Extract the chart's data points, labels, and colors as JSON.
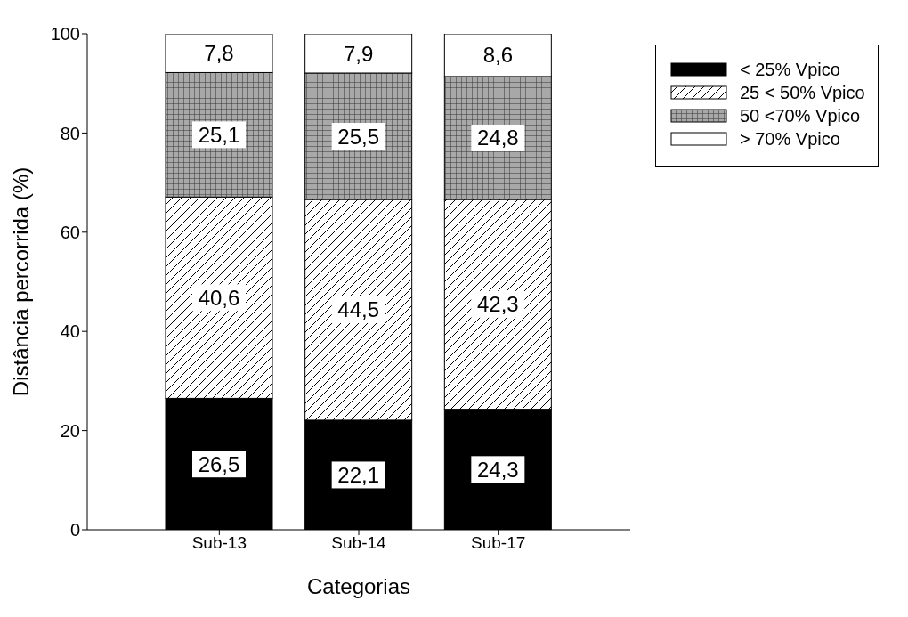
{
  "chart_data": {
    "type": "bar",
    "stacked": true,
    "legend": "top right",
    "categories": [
      "Sub-13",
      "Sub-14",
      "Sub-17"
    ],
    "xlabel": "Categorias",
    "ylabel": "Distância percorrida (%)",
    "ylim": [
      0,
      100
    ],
    "yticks": [
      0,
      20,
      40,
      60,
      80,
      100
    ],
    "series": [
      {
        "name": "< 25% Vpico",
        "color": "#000000",
        "values": [
          26.5,
          22.1,
          24.3
        ],
        "value_labels": [
          "26,5",
          "22,1",
          "24,3"
        ]
      },
      {
        "name": "25 < 50% Vpico",
        "color": "#ffffff",
        "values": [
          40.6,
          44.5,
          42.3
        ],
        "value_labels": [
          "40,6",
          "44,5",
          "42,3"
        ]
      },
      {
        "name": "50 <70% Vpico",
        "color": "#a8a8a8",
        "values": [
          25.1,
          25.5,
          24.8
        ],
        "value_labels": [
          "25,1",
          "25,5",
          "24,8"
        ]
      },
      {
        "name": "> 70% Vpico",
        "color": "#ffffff",
        "values": [
          7.8,
          7.9,
          8.6
        ],
        "value_labels": [
          "7,8",
          "7,9",
          "8,6"
        ]
      }
    ]
  }
}
